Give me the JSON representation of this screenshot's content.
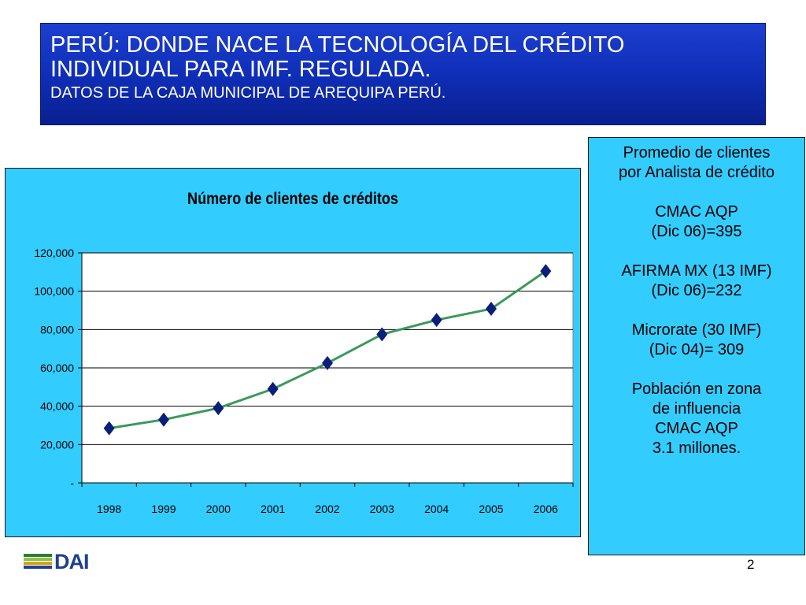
{
  "header": {
    "title_line1": "PERÚ: DONDE NACE LA TECNOLOGÍA DEL CRÉDITO",
    "title_line2": "INDIVIDUAL PARA IMF. REGULADA.",
    "subtitle": "DATOS DE LA CAJA MUNICIPAL DE AREQUIPA PERÚ."
  },
  "chart_data": {
    "type": "line",
    "title": "Número de clientes de créditos",
    "xlabel": "",
    "ylabel": "",
    "categories": [
      "1998",
      "1999",
      "2000",
      "2001",
      "2002",
      "2003",
      "2004",
      "2005",
      "2006"
    ],
    "series": [
      {
        "values": [
          28500,
          33000,
          39000,
          49000,
          62500,
          77500,
          85000,
          90800,
          110500
        ],
        "color": "#3a9a5a",
        "marker_color": "#0a1f7a"
      }
    ],
    "ylim": [
      0,
      120000
    ],
    "yticks": [
      0,
      20000,
      40000,
      60000,
      80000,
      100000,
      120000
    ],
    "ytick_labels": [
      "-",
      "20,000",
      "40,000",
      "60,000",
      "80,000",
      "100,000",
      "120,000"
    ],
    "grid": true,
    "legend": "none",
    "background": "#33ccff",
    "plot_background": "#ffffff"
  },
  "side_panel": {
    "groups": [
      [
        "Promedio de clientes",
        "por Analista de crédito"
      ],
      [
        "CMAC AQP",
        "(Dic 06)=395"
      ],
      [
        "AFIRMA MX (13 IMF)",
        "(Dic 06)=232"
      ],
      [
        "Microrate (30 IMF)",
        "(Dic 04)= 309"
      ],
      [
        "Población en zona",
        "de influencia",
        "CMAC AQP",
        "3.1 millones."
      ]
    ]
  },
  "footer": {
    "logo_text": "DAI",
    "logo_colors": [
      "#2e7d32",
      "#8bc34a",
      "#d4a017",
      "#1f3f8f"
    ],
    "page_number": "2"
  }
}
